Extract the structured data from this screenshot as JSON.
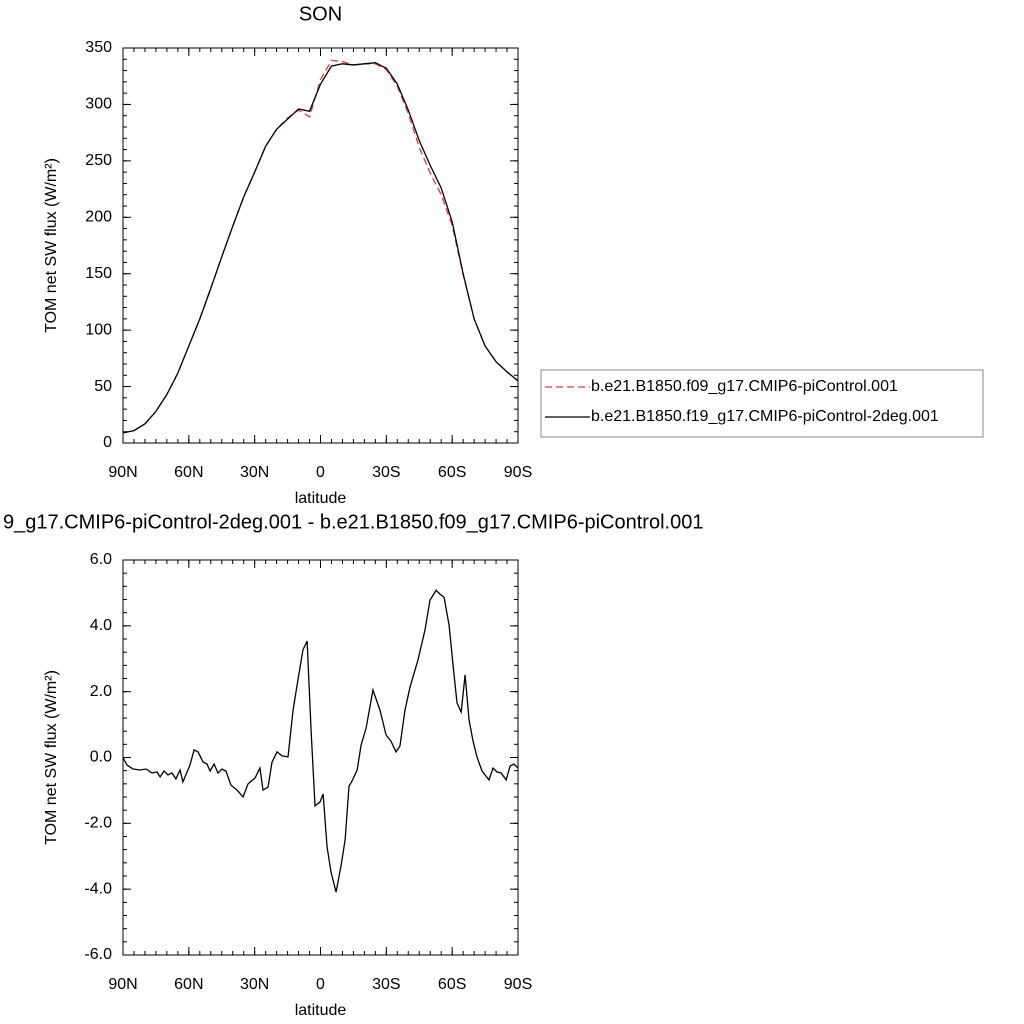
{
  "chart_data": [
    {
      "type": "line",
      "title": "SON",
      "x_label": "latitude",
      "y_label": "TOM net SW flux (W/m²)",
      "x": [
        90,
        85,
        80,
        75,
        70,
        65,
        60,
        55,
        50,
        45,
        40,
        35,
        30,
        25,
        20,
        15,
        10,
        5,
        0,
        -5,
        -10,
        -15,
        -20,
        -25,
        -30,
        -35,
        -40,
        -45,
        -50,
        -55,
        -60,
        -65,
        -70,
        -75,
        -80,
        -85,
        -90
      ],
      "series": [
        {
          "name": "b.e21.B1850.f09_g17.CMIP6-piControl.001",
          "color": "#e8343f",
          "dashed": true,
          "values": [
            9,
            11,
            17,
            28,
            43,
            62,
            86,
            110,
            137,
            165,
            192,
            218,
            240,
            263,
            278,
            288,
            295,
            289,
            322,
            339,
            338,
            335,
            336,
            336,
            331,
            316,
            292,
            262,
            239,
            220,
            193,
            149,
            110,
            86,
            72,
            63,
            55
          ]
        },
        {
          "name": "b.e21.B1850.f19_g17.CMIP6-piControl-2deg.001",
          "color": "#000000",
          "dashed": false,
          "values": [
            9,
            11,
            17,
            28,
            43,
            62,
            86,
            110,
            137,
            165,
            192,
            218,
            240,
            263,
            278,
            287,
            296,
            294,
            318,
            334,
            336,
            335,
            336,
            337,
            332,
            318,
            295,
            268,
            246,
            226,
            196,
            150,
            110,
            86,
            72,
            63,
            55
          ]
        }
      ],
      "xlim": [
        90,
        -90
      ],
      "xticks": [
        {
          "value": 90,
          "label": "90N"
        },
        {
          "value": 60,
          "label": "60N"
        },
        {
          "value": 30,
          "label": "30N"
        },
        0,
        {
          "value": -30,
          "label": "30S"
        },
        {
          "value": -60,
          "label": "60S"
        },
        {
          "value": -90,
          "label": "90S"
        }
      ],
      "ylim": [
        0,
        350
      ],
      "yticks": [
        0,
        50,
        100,
        150,
        200,
        250,
        300,
        350
      ],
      "legend": "right"
    },
    {
      "type": "line",
      "title": "9_g17.CMIP6-piControl-2deg.001 - b.e21.B1850.f09_g17.CMIP6-piControl.001",
      "x_label": "latitude",
      "y_label": "TOM net SW flux (W/m²)",
      "x": [
        90,
        88.2,
        85.4,
        82.3,
        79.5,
        76.8,
        74.5,
        73.1,
        71.3,
        69.5,
        67.7,
        65.9,
        64.0,
        62.7,
        59.5,
        57.6,
        55.8,
        53.5,
        51.7,
        50.3,
        48.5,
        46.7,
        44.9,
        43.1,
        40.8,
        38.0,
        35.3,
        33.0,
        29.8,
        27.6,
        26.2,
        23.9,
        22.1,
        19.8,
        17.5,
        14.8,
        12.5,
        10.3,
        8.0,
        6.1,
        4.3,
        2.5,
        0.2,
        -1.2,
        -3.0,
        -4.8,
        -7.1,
        -9.4,
        -11.2,
        -13.0,
        -14.4,
        -16.7,
        -18.5,
        -20.8,
        -23.9,
        -27.1,
        -29.9,
        -32.1,
        -34.4,
        -36.2,
        -38.5,
        -40.8,
        -44.4,
        -47.6,
        -49.9,
        -52.7,
        -54.5,
        -56.3,
        -58.6,
        -60.4,
        -62.2,
        -64.1,
        -65.9,
        -67.7,
        -69.5,
        -71.3,
        -73.6,
        -76.8,
        -78.6,
        -80.5,
        -82.3,
        -84.6,
        -86.4,
        -88.2,
        -90
      ],
      "series": [
        {
          "color": "#000000",
          "dashed": false,
          "values": [
            0.0,
            -0.23,
            -0.35,
            -0.38,
            -0.35,
            -0.47,
            -0.44,
            -0.59,
            -0.41,
            -0.53,
            -0.47,
            -0.65,
            -0.38,
            -0.74,
            -0.23,
            0.23,
            0.17,
            -0.14,
            -0.2,
            -0.41,
            -0.2,
            -0.47,
            -0.35,
            -0.41,
            -0.84,
            -0.99,
            -1.2,
            -0.8,
            -0.62,
            -0.32,
            -0.99,
            -0.9,
            -0.14,
            0.17,
            0.05,
            0.02,
            1.44,
            2.35,
            3.27,
            3.54,
            0.84,
            -1.47,
            -1.35,
            -1.11,
            -2.72,
            -3.48,
            -4.09,
            -3.27,
            -2.51,
            -0.87,
            -0.71,
            -0.38,
            0.38,
            0.9,
            2.05,
            1.44,
            0.68,
            0.5,
            0.17,
            0.35,
            1.44,
            2.14,
            2.96,
            3.87,
            4.78,
            5.08,
            4.96,
            4.87,
            4.02,
            2.81,
            1.66,
            1.38,
            2.51,
            1.14,
            0.5,
            0.02,
            -0.41,
            -0.68,
            -0.32,
            -0.44,
            -0.47,
            -0.68,
            -0.26,
            -0.2,
            -0.32
          ]
        }
      ],
      "xlim": [
        90,
        -90
      ],
      "xticks": [
        {
          "value": 90,
          "label": "90N"
        },
        {
          "value": 60,
          "label": "60N"
        },
        {
          "value": 30,
          "label": "30N"
        },
        0,
        {
          "value": -30,
          "label": "30S"
        },
        {
          "value": -60,
          "label": "60S"
        },
        {
          "value": -90,
          "label": "90S"
        }
      ],
      "ylim": [
        -6,
        6
      ],
      "yticks": [
        {
          "value": -6,
          "label": "-6.0"
        },
        {
          "value": -4,
          "label": "-4.0"
        },
        {
          "value": -2,
          "label": "-2.0"
        },
        {
          "value": 0,
          "label": "0.0"
        },
        {
          "value": 2,
          "label": "2.0"
        },
        {
          "value": 4,
          "label": "4.0"
        },
        {
          "value": 6,
          "label": "6.0"
        }
      ]
    }
  ]
}
